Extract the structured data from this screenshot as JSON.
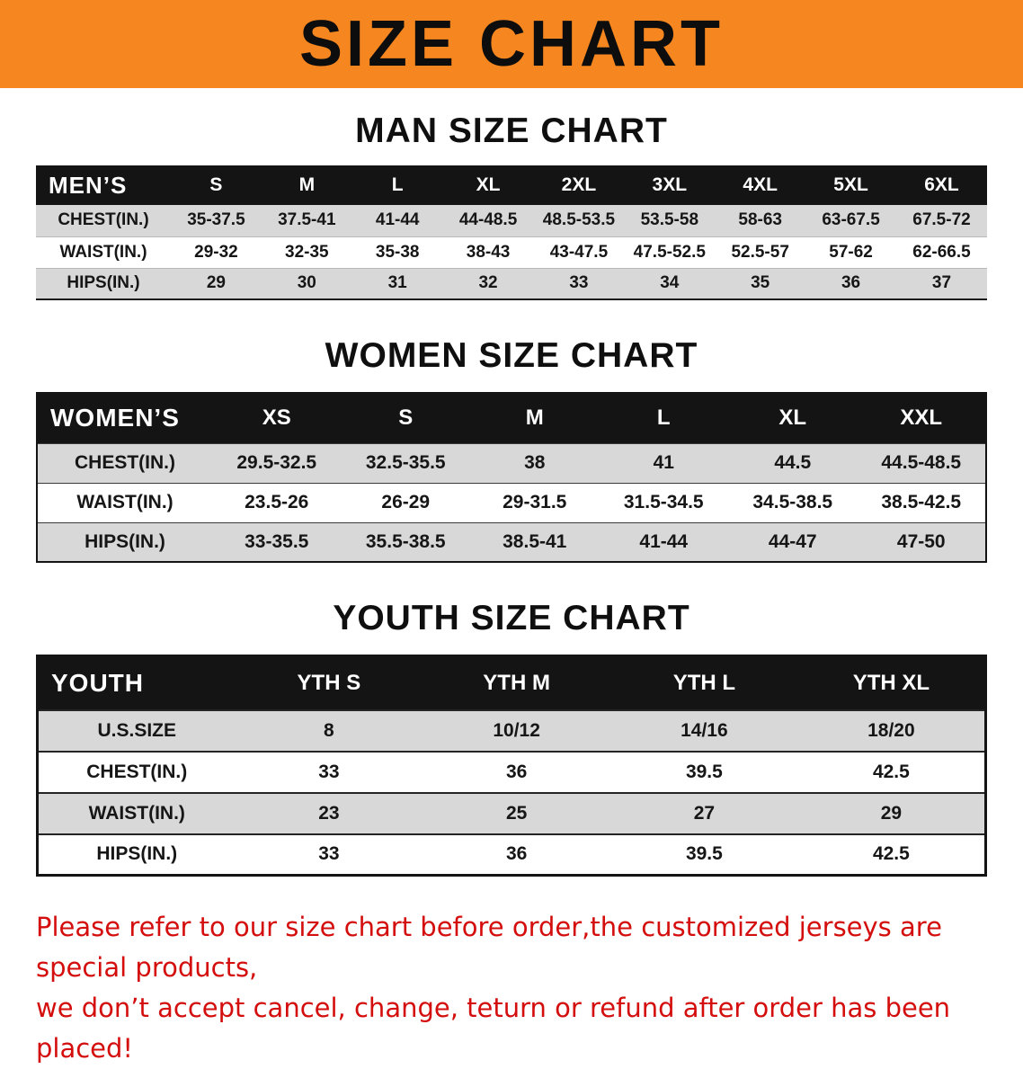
{
  "banner": {
    "title": "SIZE CHART",
    "bg_color": "#f6861f",
    "text_color": "#0d0d0d"
  },
  "sections": [
    {
      "id": "men",
      "heading": "MAN SIZE CHART",
      "corner_label": "MEN’S",
      "columns": [
        "S",
        "M",
        "L",
        "XL",
        "2XL",
        "3XL",
        "4XL",
        "5XL",
        "6XL"
      ],
      "rows": [
        {
          "label": "CHEST(IN.)",
          "values": [
            "35-37.5",
            "37.5-41",
            "41-44",
            "44-48.5",
            "48.5-53.5",
            "53.5-58",
            "58-63",
            "63-67.5",
            "67.5-72"
          ]
        },
        {
          "label": "WAIST(IN.)",
          "values": [
            "29-32",
            "32-35",
            "35-38",
            "38-43",
            "43-47.5",
            "47.5-52.5",
            "52.5-57",
            "57-62",
            "62-66.5"
          ]
        },
        {
          "label": "HIPS(IN.)",
          "values": [
            "29",
            "30",
            "31",
            "32",
            "33",
            "34",
            "35",
            "36",
            "37"
          ]
        }
      ]
    },
    {
      "id": "women",
      "heading": "WOMEN SIZE CHART",
      "corner_label": "WOMEN’S",
      "columns": [
        "XS",
        "S",
        "M",
        "L",
        "XL",
        "XXL"
      ],
      "rows": [
        {
          "label": "CHEST(IN.)",
          "values": [
            "29.5-32.5",
            "32.5-35.5",
            "38",
            "41",
            "44.5",
            "44.5-48.5"
          ]
        },
        {
          "label": "WAIST(IN.)",
          "values": [
            "23.5-26",
            "26-29",
            "29-31.5",
            "31.5-34.5",
            "34.5-38.5",
            "38.5-42.5"
          ]
        },
        {
          "label": "HIPS(IN.)",
          "values": [
            "33-35.5",
            "35.5-38.5",
            "38.5-41",
            "41-44",
            "44-47",
            "47-50"
          ]
        }
      ]
    },
    {
      "id": "youth",
      "heading": "YOUTH SIZE CHART",
      "corner_label": "YOUTH",
      "columns": [
        "YTH S",
        "YTH M",
        "YTH L",
        "YTH XL"
      ],
      "rows": [
        {
          "label": "U.S.SIZE",
          "values": [
            "8",
            "10/12",
            "14/16",
            "18/20"
          ]
        },
        {
          "label": "CHEST(IN.)",
          "values": [
            "33",
            "36",
            "39.5",
            "42.5"
          ]
        },
        {
          "label": "WAIST(IN.)",
          "values": [
            "23",
            "25",
            "27",
            "29"
          ]
        },
        {
          "label": "HIPS(IN.)",
          "values": [
            "33",
            "36",
            "39.5",
            "42.5"
          ]
        }
      ]
    }
  ],
  "footer": {
    "color": "#d40d0d",
    "line1": "Please refer to our size chart before order,the customized jerseys are special products,",
    "line2": "we don’t accept cancel, change, teturn or refund after order has been placed!"
  }
}
